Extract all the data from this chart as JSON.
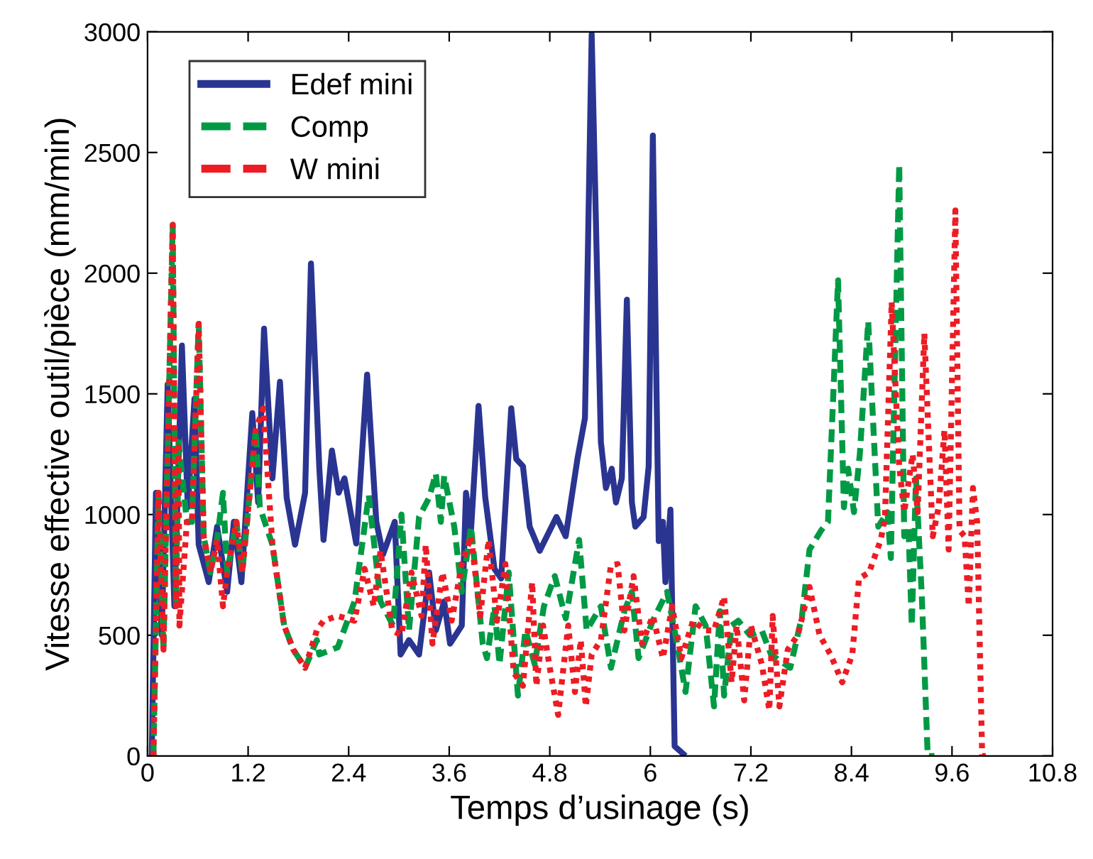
{
  "chart_data": {
    "type": "line",
    "xlabel": "Temps d’usinage (s)",
    "ylabel": "Vitesse effective outil/pièce (mm/min)",
    "xlim": [
      0,
      10.8
    ],
    "xticks": [
      0,
      1.2,
      2.4,
      3.6,
      4.8,
      6,
      7.2,
      8.4,
      9.6,
      10.8
    ],
    "ylim": [
      0,
      3000
    ],
    "yticks": [
      0,
      500,
      1000,
      1500,
      2000,
      2500,
      3000
    ],
    "grid": false,
    "legend": "top left",
    "marker": "none",
    "series": [
      {
        "name": "Edef mini",
        "color": "#2a3591",
        "line_style": "solid",
        "x": [
          0.05,
          0.1,
          0.17,
          0.24,
          0.32,
          0.41,
          0.48,
          0.56,
          0.61,
          0.73,
          0.83,
          0.95,
          1.03,
          1.12,
          1.25,
          1.32,
          1.39,
          1.49,
          1.58,
          1.66,
          1.76,
          1.88,
          1.95,
          2.05,
          2.1,
          2.2,
          2.28,
          2.35,
          2.49,
          2.62,
          2.73,
          2.81,
          2.95,
          3.02,
          3.12,
          3.24,
          3.36,
          3.44,
          3.54,
          3.61,
          3.75,
          3.8,
          3.86,
          3.95,
          4.03,
          4.14,
          4.22,
          4.34,
          4.4,
          4.48,
          4.56,
          4.68,
          4.88,
          4.99,
          5.13,
          5.22,
          5.3,
          5.41,
          5.47,
          5.54,
          5.59,
          5.66,
          5.72,
          5.78,
          5.82,
          5.92,
          5.98,
          6.03,
          6.1,
          6.15,
          6.18,
          6.24,
          6.29,
          6.42
        ],
        "values": [
          0,
          1090,
          500,
          1540,
          620,
          1700,
          1030,
          1480,
          875,
          720,
          950,
          680,
          970,
          720,
          1420,
          1050,
          1770,
          1150,
          1550,
          1070,
          875,
          1090,
          2040,
          1190,
          895,
          1265,
          1090,
          1150,
          880,
          1580,
          970,
          835,
          970,
          420,
          480,
          420,
          760,
          520,
          640,
          465,
          540,
          1090,
          935,
          1450,
          1070,
          775,
          735,
          1440,
          1230,
          1200,
          950,
          850,
          990,
          910,
          1230,
          1400,
          2990,
          1300,
          1110,
          1190,
          1050,
          1150,
          1890,
          1050,
          950,
          990,
          1200,
          2570,
          890,
          970,
          720,
          1020,
          40,
          0
        ]
      },
      {
        "name": "Comp",
        "color": "#009a44",
        "line_style": "dashed",
        "x": [
          0.07,
          0.13,
          0.19,
          0.24,
          0.3,
          0.34,
          0.37,
          0.47,
          0.53,
          0.61,
          0.67,
          0.75,
          0.83,
          0.9,
          0.95,
          1.06,
          1.13,
          1.29,
          1.34,
          1.49,
          1.63,
          1.74,
          1.88,
          2.02,
          2.05,
          2.27,
          2.47,
          2.64,
          2.78,
          2.93,
          3.03,
          3.12,
          3.24,
          3.36,
          3.44,
          3.5,
          3.54,
          3.66,
          3.75,
          3.86,
          4.0,
          4.05,
          4.14,
          4.2,
          4.31,
          4.42,
          4.51,
          4.62,
          4.73,
          4.86,
          4.99,
          5.15,
          5.24,
          5.41,
          5.53,
          5.69,
          5.78,
          5.86,
          6.03,
          6.2,
          6.32,
          6.42,
          6.54,
          6.66,
          6.76,
          6.83,
          6.88,
          6.97,
          7.05,
          7.19,
          7.33,
          7.44,
          7.67,
          7.81,
          7.9,
          8.04,
          8.12,
          8.24,
          8.31,
          8.36,
          8.43,
          8.5,
          8.6,
          8.72,
          8.83,
          8.87,
          8.97,
          9.03,
          9.08,
          9.12,
          9.17,
          9.24,
          9.31,
          9.39
        ],
        "values": [
          0,
          1090,
          440,
          1260,
          2200,
          620,
          1300,
          970,
          970,
          1790,
          910,
          760,
          895,
          1090,
          760,
          970,
          760,
          1350,
          1030,
          875,
          540,
          440,
          365,
          480,
          420,
          450,
          640,
          1080,
          640,
          540,
          1000,
          520,
          990,
          1070,
          1170,
          970,
          1160,
          950,
          680,
          950,
          465,
          405,
          620,
          380,
          760,
          250,
          520,
          380,
          620,
          745,
          570,
          895,
          520,
          620,
          365,
          600,
          680,
          405,
          560,
          680,
          465,
          265,
          620,
          540,
          205,
          600,
          250,
          540,
          560,
          500,
          520,
          420,
          365,
          580,
          855,
          935,
          970,
          1970,
          1030,
          1190,
          1010,
          1250,
          1800,
          950,
          1010,
          820,
          2450,
          910,
          950,
          540,
          1150,
          660,
          0,
          0
        ]
      },
      {
        "name": "W mini",
        "color": "#ed1c24",
        "line_style": "dotted",
        "x": [
          0.07,
          0.13,
          0.19,
          0.24,
          0.3,
          0.34,
          0.37,
          0.38,
          0.47,
          0.53,
          0.61,
          0.67,
          0.75,
          0.83,
          0.9,
          0.95,
          1.06,
          1.13,
          1.29,
          1.38,
          1.49,
          1.63,
          1.74,
          1.88,
          2.02,
          2.1,
          2.27,
          2.47,
          2.59,
          2.7,
          2.78,
          2.92,
          3.03,
          3.15,
          3.27,
          3.32,
          3.4,
          3.52,
          3.63,
          3.75,
          3.86,
          3.97,
          4.07,
          4.17,
          4.27,
          4.37,
          4.48,
          4.59,
          4.64,
          4.72,
          4.8,
          4.9,
          5.02,
          5.1,
          5.17,
          5.23,
          5.3,
          5.41,
          5.53,
          5.61,
          5.69,
          5.8,
          5.9,
          6.03,
          6.15,
          6.26,
          6.37,
          6.51,
          6.66,
          6.76,
          6.88,
          6.97,
          7.03,
          7.12,
          7.2,
          7.33,
          7.42,
          7.46,
          7.54,
          7.64,
          7.76,
          7.9,
          8.02,
          8.15,
          8.29,
          8.41,
          8.49,
          8.61,
          8.75,
          8.8,
          8.88,
          8.97,
          9.03,
          9.13,
          9.19,
          9.27,
          9.37,
          9.44,
          9.51,
          9.56,
          9.64,
          9.69,
          9.75,
          9.8,
          9.85,
          9.9,
          9.96,
          10.05
        ],
        "values": [
          0,
          1090,
          440,
          1260,
          2200,
          620,
          1300,
          540,
          970,
          970,
          1790,
          910,
          760,
          895,
          620,
          760,
          970,
          760,
          1350,
          1440,
          875,
          540,
          440,
          365,
          520,
          560,
          580,
          560,
          775,
          620,
          850,
          520,
          500,
          760,
          580,
          875,
          465,
          760,
          560,
          795,
          910,
          580,
          895,
          560,
          795,
          345,
          290,
          720,
          290,
          540,
          365,
          170,
          540,
          265,
          480,
          205,
          420,
          480,
          790,
          795,
          520,
          745,
          465,
          580,
          405,
          620,
          405,
          560,
          520,
          520,
          660,
          305,
          540,
          230,
          540,
          380,
          190,
          580,
          205,
          440,
          500,
          700,
          500,
          420,
          305,
          420,
          735,
          760,
          895,
          990,
          1880,
          1200,
          1010,
          1250,
          1010,
          1750,
          910,
          1030,
          1350,
          855,
          2260,
          935,
          910,
          620,
          1110,
          970,
          0,
          0
        ]
      }
    ]
  }
}
